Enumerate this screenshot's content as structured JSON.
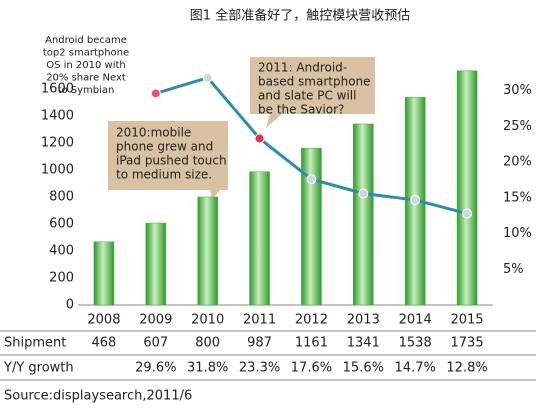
{
  "chart_data": {
    "type": "bar_line",
    "title": "图1  全部准备好了，触控模块营收预估",
    "categories": [
      "2008",
      "2009",
      "2010",
      "2011",
      "2012",
      "2013",
      "2014",
      "2015"
    ],
    "series": [
      {
        "name": "Shipment",
        "color": "#3fae3a",
        "values": [
          468,
          607,
          800,
          987,
          1161,
          1341,
          1538,
          1735
        ]
      },
      {
        "name": "Y/Y growth",
        "axis": "y2",
        "color": "#2b8fa6",
        "values": [
          null,
          29.6,
          31.8,
          23.3,
          17.6,
          15.6,
          14.7,
          12.8
        ],
        "value_labels": [
          null,
          "29.6%",
          "31.8%",
          "23.3%",
          "17.6%",
          "15.6%",
          "14.7%",
          "12.8%"
        ],
        "marker_colors": [
          null,
          "#e8506e",
          "#cfd8dc",
          "#e0304a",
          "#cfd8dc",
          "#cfd8dc",
          "#cfd8dc",
          "#cfd8dc"
        ]
      }
    ],
    "ylim": [
      0,
      1800
    ],
    "yticks": [
      0,
      200,
      400,
      600,
      800,
      1000,
      1200,
      1400,
      1600
    ],
    "y2lim": [
      0,
      34
    ],
    "y2ticks": [
      {
        "value": 5,
        "label": "5%"
      },
      {
        "value": 10,
        "label": "10%"
      },
      {
        "value": 15,
        "label": "15%"
      },
      {
        "value": 20,
        "label": "20%"
      },
      {
        "value": 25,
        "label": "25%"
      },
      {
        "value": 30,
        "label": "30%"
      }
    ],
    "annotations": [
      {
        "lines": [
          "Android became",
          "top2  smartphone",
          "OS in 2010 with",
          "20% share  Next",
          "to Symbian"
        ]
      },
      {
        "lines": [
          "2010:mobile",
          "phone grew and",
          "iPad pushed touch",
          "to medium size."
        ]
      },
      {
        "lines": [
          "2011: Android-",
          "based smartphone",
          "and slate PC will",
          "be the Savior?"
        ]
      }
    ],
    "source": "Source:displaysearch,2011/6"
  }
}
